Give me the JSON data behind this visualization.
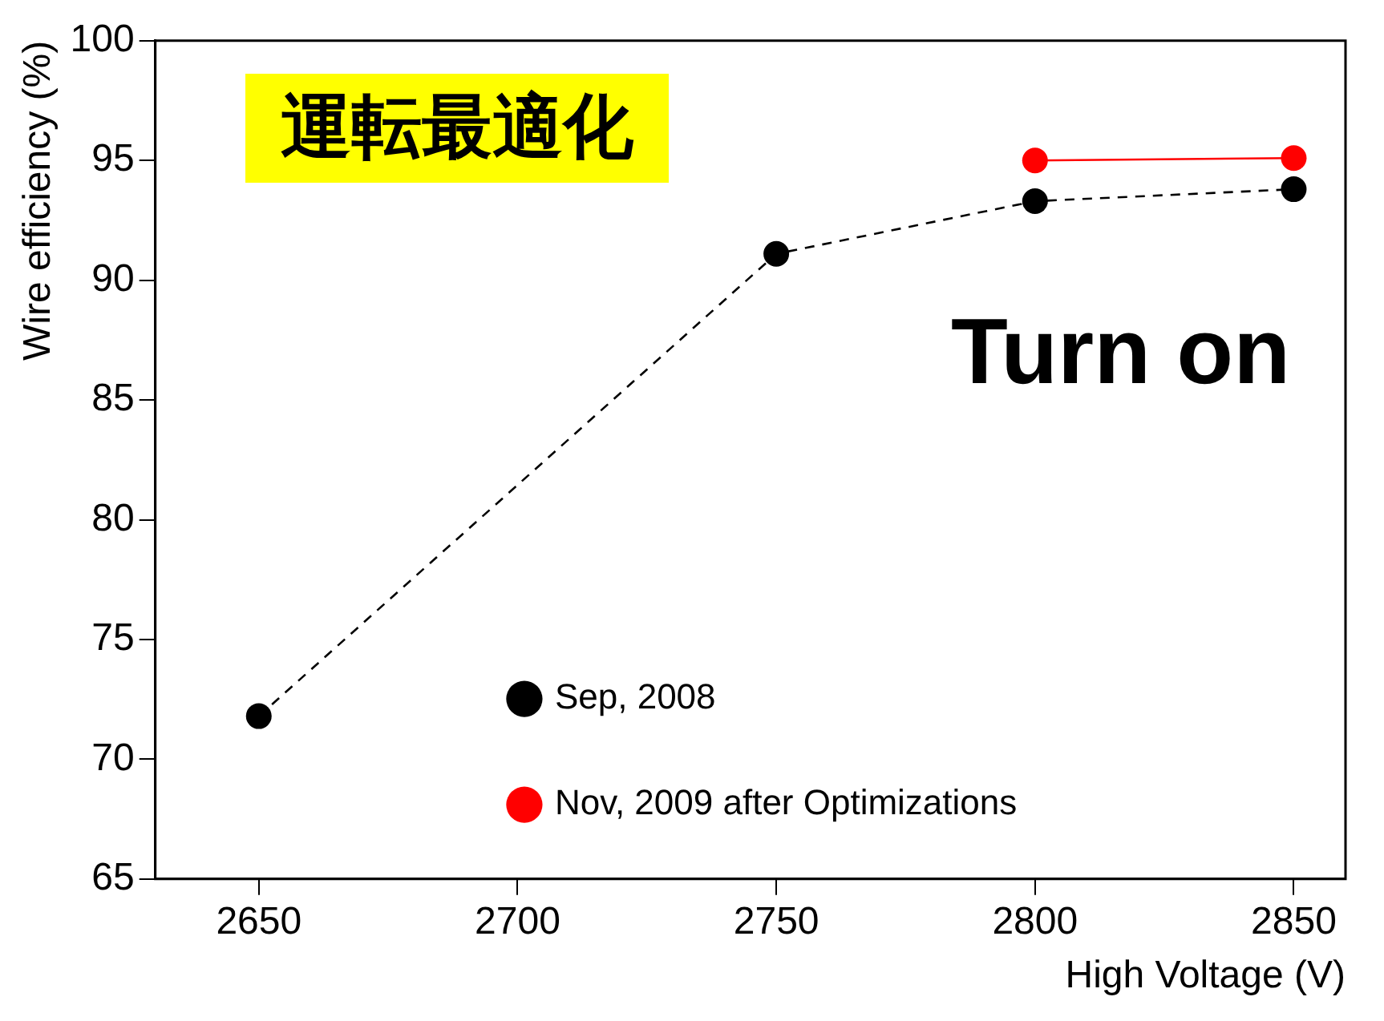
{
  "chart_data": {
    "type": "line",
    "xlabel": "High Voltage (V)",
    "ylabel": "Wire efficiency (%)",
    "annotations": [
      "運転最適化",
      "Turn on"
    ],
    "xlim": [
      2630,
      2860
    ],
    "xticks": [
      2650,
      2700,
      2750,
      2800,
      2850
    ],
    "ylim": [
      65,
      100
    ],
    "yticks": [
      65,
      70,
      75,
      80,
      85,
      90,
      95,
      100
    ],
    "grid": false,
    "legend": "bottom",
    "marker": "circle",
    "series": [
      {
        "name": "Sep, 2008",
        "color": "#000000",
        "line_style": "dashed",
        "x": [
          2650,
          2750,
          2800,
          2850
        ],
        "values": [
          71.8,
          91.1,
          93.3,
          93.8
        ]
      },
      {
        "name": "Nov, 2009 after Optimizations",
        "color": "#ff0000",
        "line_style": "solid",
        "x": [
          2800,
          2850
        ],
        "values": [
          95.0,
          95.1
        ]
      }
    ]
  }
}
